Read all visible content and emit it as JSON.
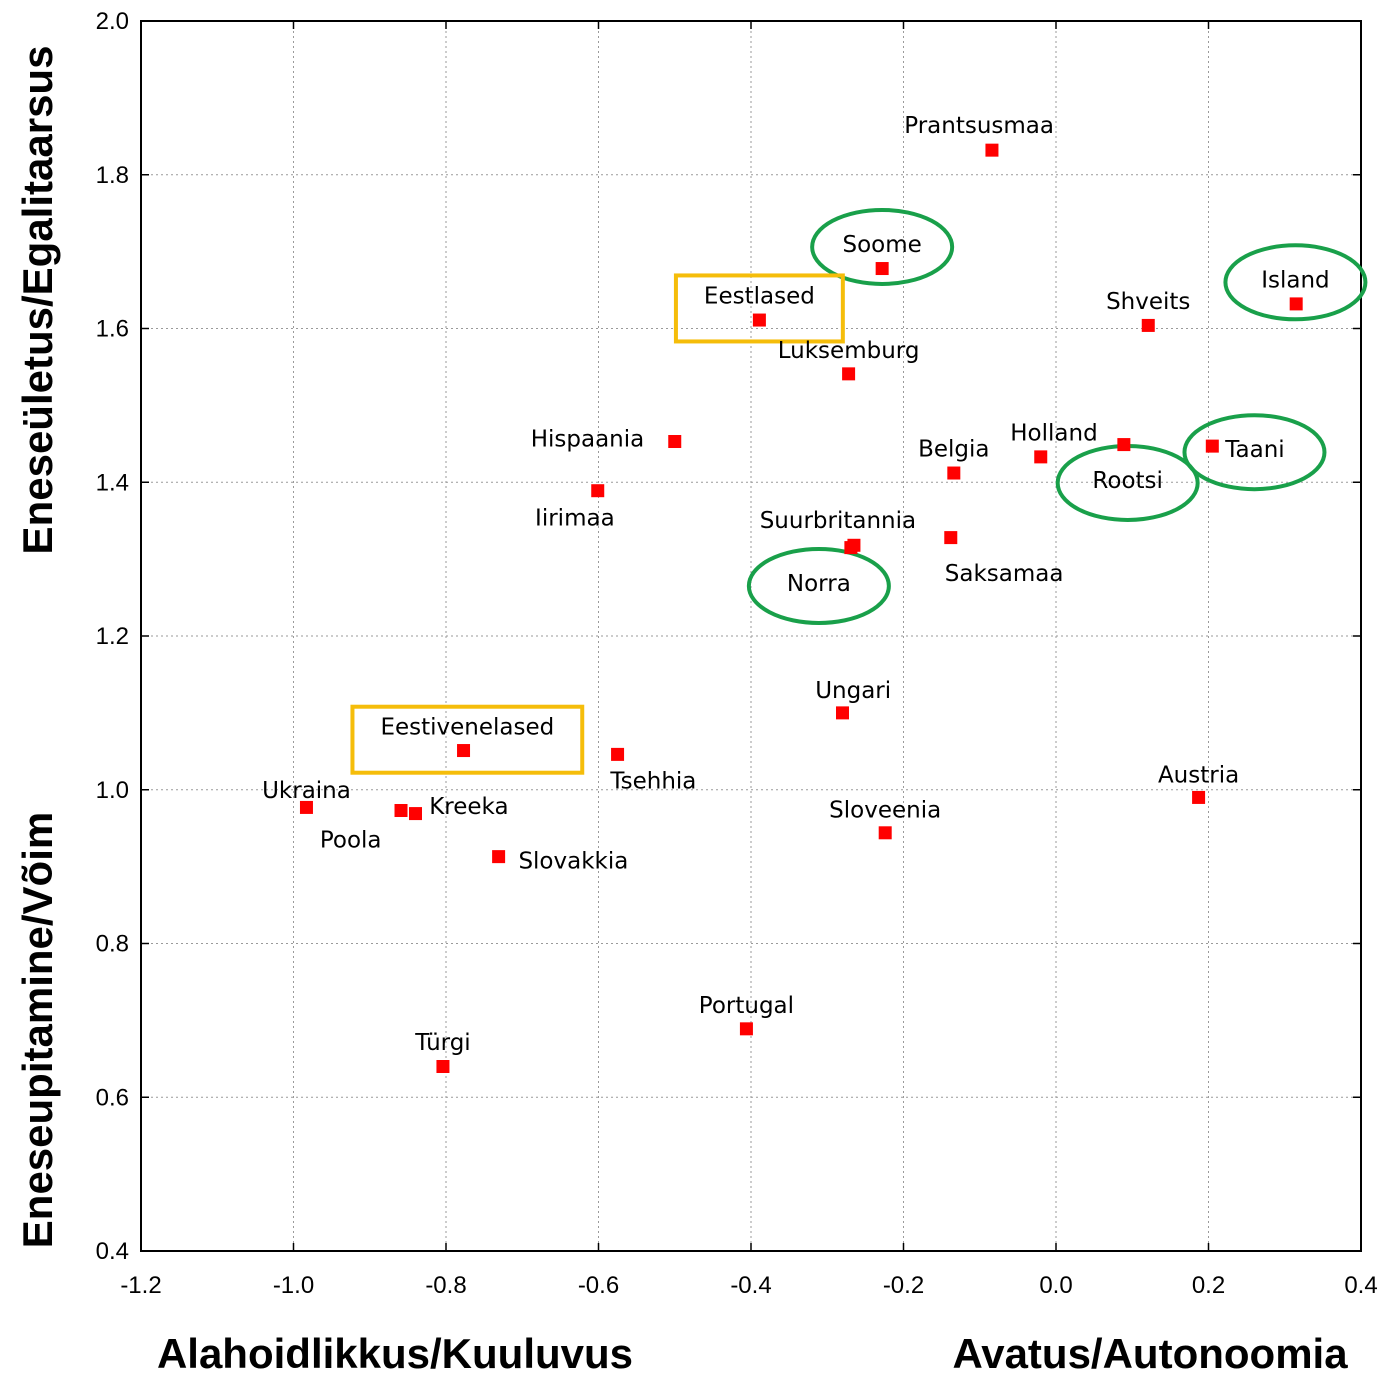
{
  "chart_data": {
    "type": "scatter",
    "xlim": [
      -1.2,
      0.4
    ],
    "ylim": [
      0.4,
      2.0
    ],
    "x_ticks": [
      "-1.2",
      "-1.0",
      "-0.8",
      "-0.6",
      "-0.4",
      "-0.2",
      "0.0",
      "0.2",
      "0.4"
    ],
    "y_ticks": [
      "0.4",
      "0.6",
      "0.8",
      "1.0",
      "1.2",
      "1.4",
      "1.6",
      "1.8",
      "2.0"
    ],
    "grid": true,
    "marker_color": "#ff0000",
    "xlabel_left": "Alahoidlikkus/Kuuluvus",
    "xlabel_right": "Avatus/Autonoomia",
    "ylabel_bottom": "Eneseupitamine/Võim",
    "ylabel_top": "Eneseületus/Egalitaarsus",
    "points": [
      {
        "label": "Prantsusmaa",
        "x": -0.084,
        "y": 1.832,
        "anchor": "start",
        "lx": -0.199,
        "ly": 1.865
      },
      {
        "label": "Soome",
        "x": -0.228,
        "y": 1.678,
        "anchor": "middle",
        "lx": -0.228,
        "ly": 1.71,
        "highlight": "ellipse"
      },
      {
        "label": "Island",
        "x": 0.315,
        "y": 1.632,
        "anchor": "middle",
        "lx": 0.314,
        "ly": 1.664,
        "highlight": "ellipse"
      },
      {
        "label": "Eestlased",
        "x": -0.389,
        "y": 1.611,
        "anchor": "middle",
        "lx": -0.389,
        "ly": 1.643,
        "highlight": "box"
      },
      {
        "label": "Shveits",
        "x": 0.121,
        "y": 1.604,
        "anchor": "middle",
        "lx": 0.121,
        "ly": 1.636
      },
      {
        "label": "Luksemburg",
        "x": -0.272,
        "y": 1.541,
        "anchor": "middle",
        "lx": -0.272,
        "ly": 1.572
      },
      {
        "label": "Hispaania",
        "x": -0.5,
        "y": 1.453,
        "anchor": "end",
        "lx": -0.54,
        "ly": 1.457
      },
      {
        "label": "Holland",
        "x": -0.02,
        "y": 1.433,
        "anchor": "start",
        "lx": -0.06,
        "ly": 1.465
      },
      {
        "label": "Rootsi",
        "x": 0.089,
        "y": 1.449,
        "anchor": "middle",
        "lx": 0.094,
        "ly": 1.403,
        "highlight": "ellipse"
      },
      {
        "label": "Taani",
        "x": 0.205,
        "y": 1.447,
        "anchor": "start",
        "lx": 0.222,
        "ly": 1.443,
        "highlight": "ellipse"
      },
      {
        "label": "Belgia",
        "x": -0.134,
        "y": 1.412,
        "anchor": "middle",
        "lx": -0.134,
        "ly": 1.444
      },
      {
        "label": "Iirimaa",
        "x": -0.601,
        "y": 1.389,
        "anchor": "middle",
        "lx": -0.631,
        "ly": 1.354
      },
      {
        "label": "Suurbritannia",
        "x": -0.265,
        "y": 1.318,
        "anchor": "middle",
        "lx": -0.286,
        "ly": 1.351
      },
      {
        "label": "Norra",
        "x": -0.269,
        "y": 1.315,
        "anchor": "middle",
        "lx": -0.311,
        "ly": 1.269,
        "highlight": "ellipse"
      },
      {
        "label": "Saksamaa",
        "x": -0.138,
        "y": 1.328,
        "anchor": "middle",
        "lx": -0.068,
        "ly": 1.282
      },
      {
        "label": "Ungari",
        "x": -0.28,
        "y": 1.1,
        "anchor": "middle",
        "lx": -0.266,
        "ly": 1.13
      },
      {
        "label": "Eestivenelased",
        "x": -0.777,
        "y": 1.051,
        "anchor": "middle",
        "lx": -0.772,
        "ly": 1.082,
        "highlight": "box"
      },
      {
        "label": "Tsehhia",
        "x": -0.575,
        "y": 1.046,
        "anchor": "middle",
        "lx": -0.528,
        "ly": 1.012
      },
      {
        "label": "Austria",
        "x": 0.187,
        "y": 0.99,
        "anchor": "middle",
        "lx": 0.187,
        "ly": 1.02
      },
      {
        "label": "Ukraina",
        "x": -0.983,
        "y": 0.977,
        "anchor": "middle",
        "lx": -0.983,
        "ly": 1.0
      },
      {
        "label": "Poola",
        "x": -0.859,
        "y": 0.973,
        "anchor": "middle",
        "lx": -0.925,
        "ly": 0.935
      },
      {
        "label": "Kreeka",
        "x": -0.84,
        "y": 0.969,
        "anchor": "start",
        "lx": -0.822,
        "ly": 0.979
      },
      {
        "label": "Sloveenia",
        "x": -0.224,
        "y": 0.944,
        "anchor": "middle",
        "lx": -0.224,
        "ly": 0.974
      },
      {
        "label": "Slovakkia",
        "x": -0.731,
        "y": 0.913,
        "anchor": "start",
        "lx": -0.705,
        "ly": 0.908
      },
      {
        "label": "Portugal",
        "x": -0.406,
        "y": 0.689,
        "anchor": "middle",
        "lx": -0.406,
        "ly": 0.72
      },
      {
        "label": "Türgi",
        "x": -0.804,
        "y": 0.64,
        "anchor": "middle",
        "lx": -0.804,
        "ly": 0.672
      }
    ]
  }
}
